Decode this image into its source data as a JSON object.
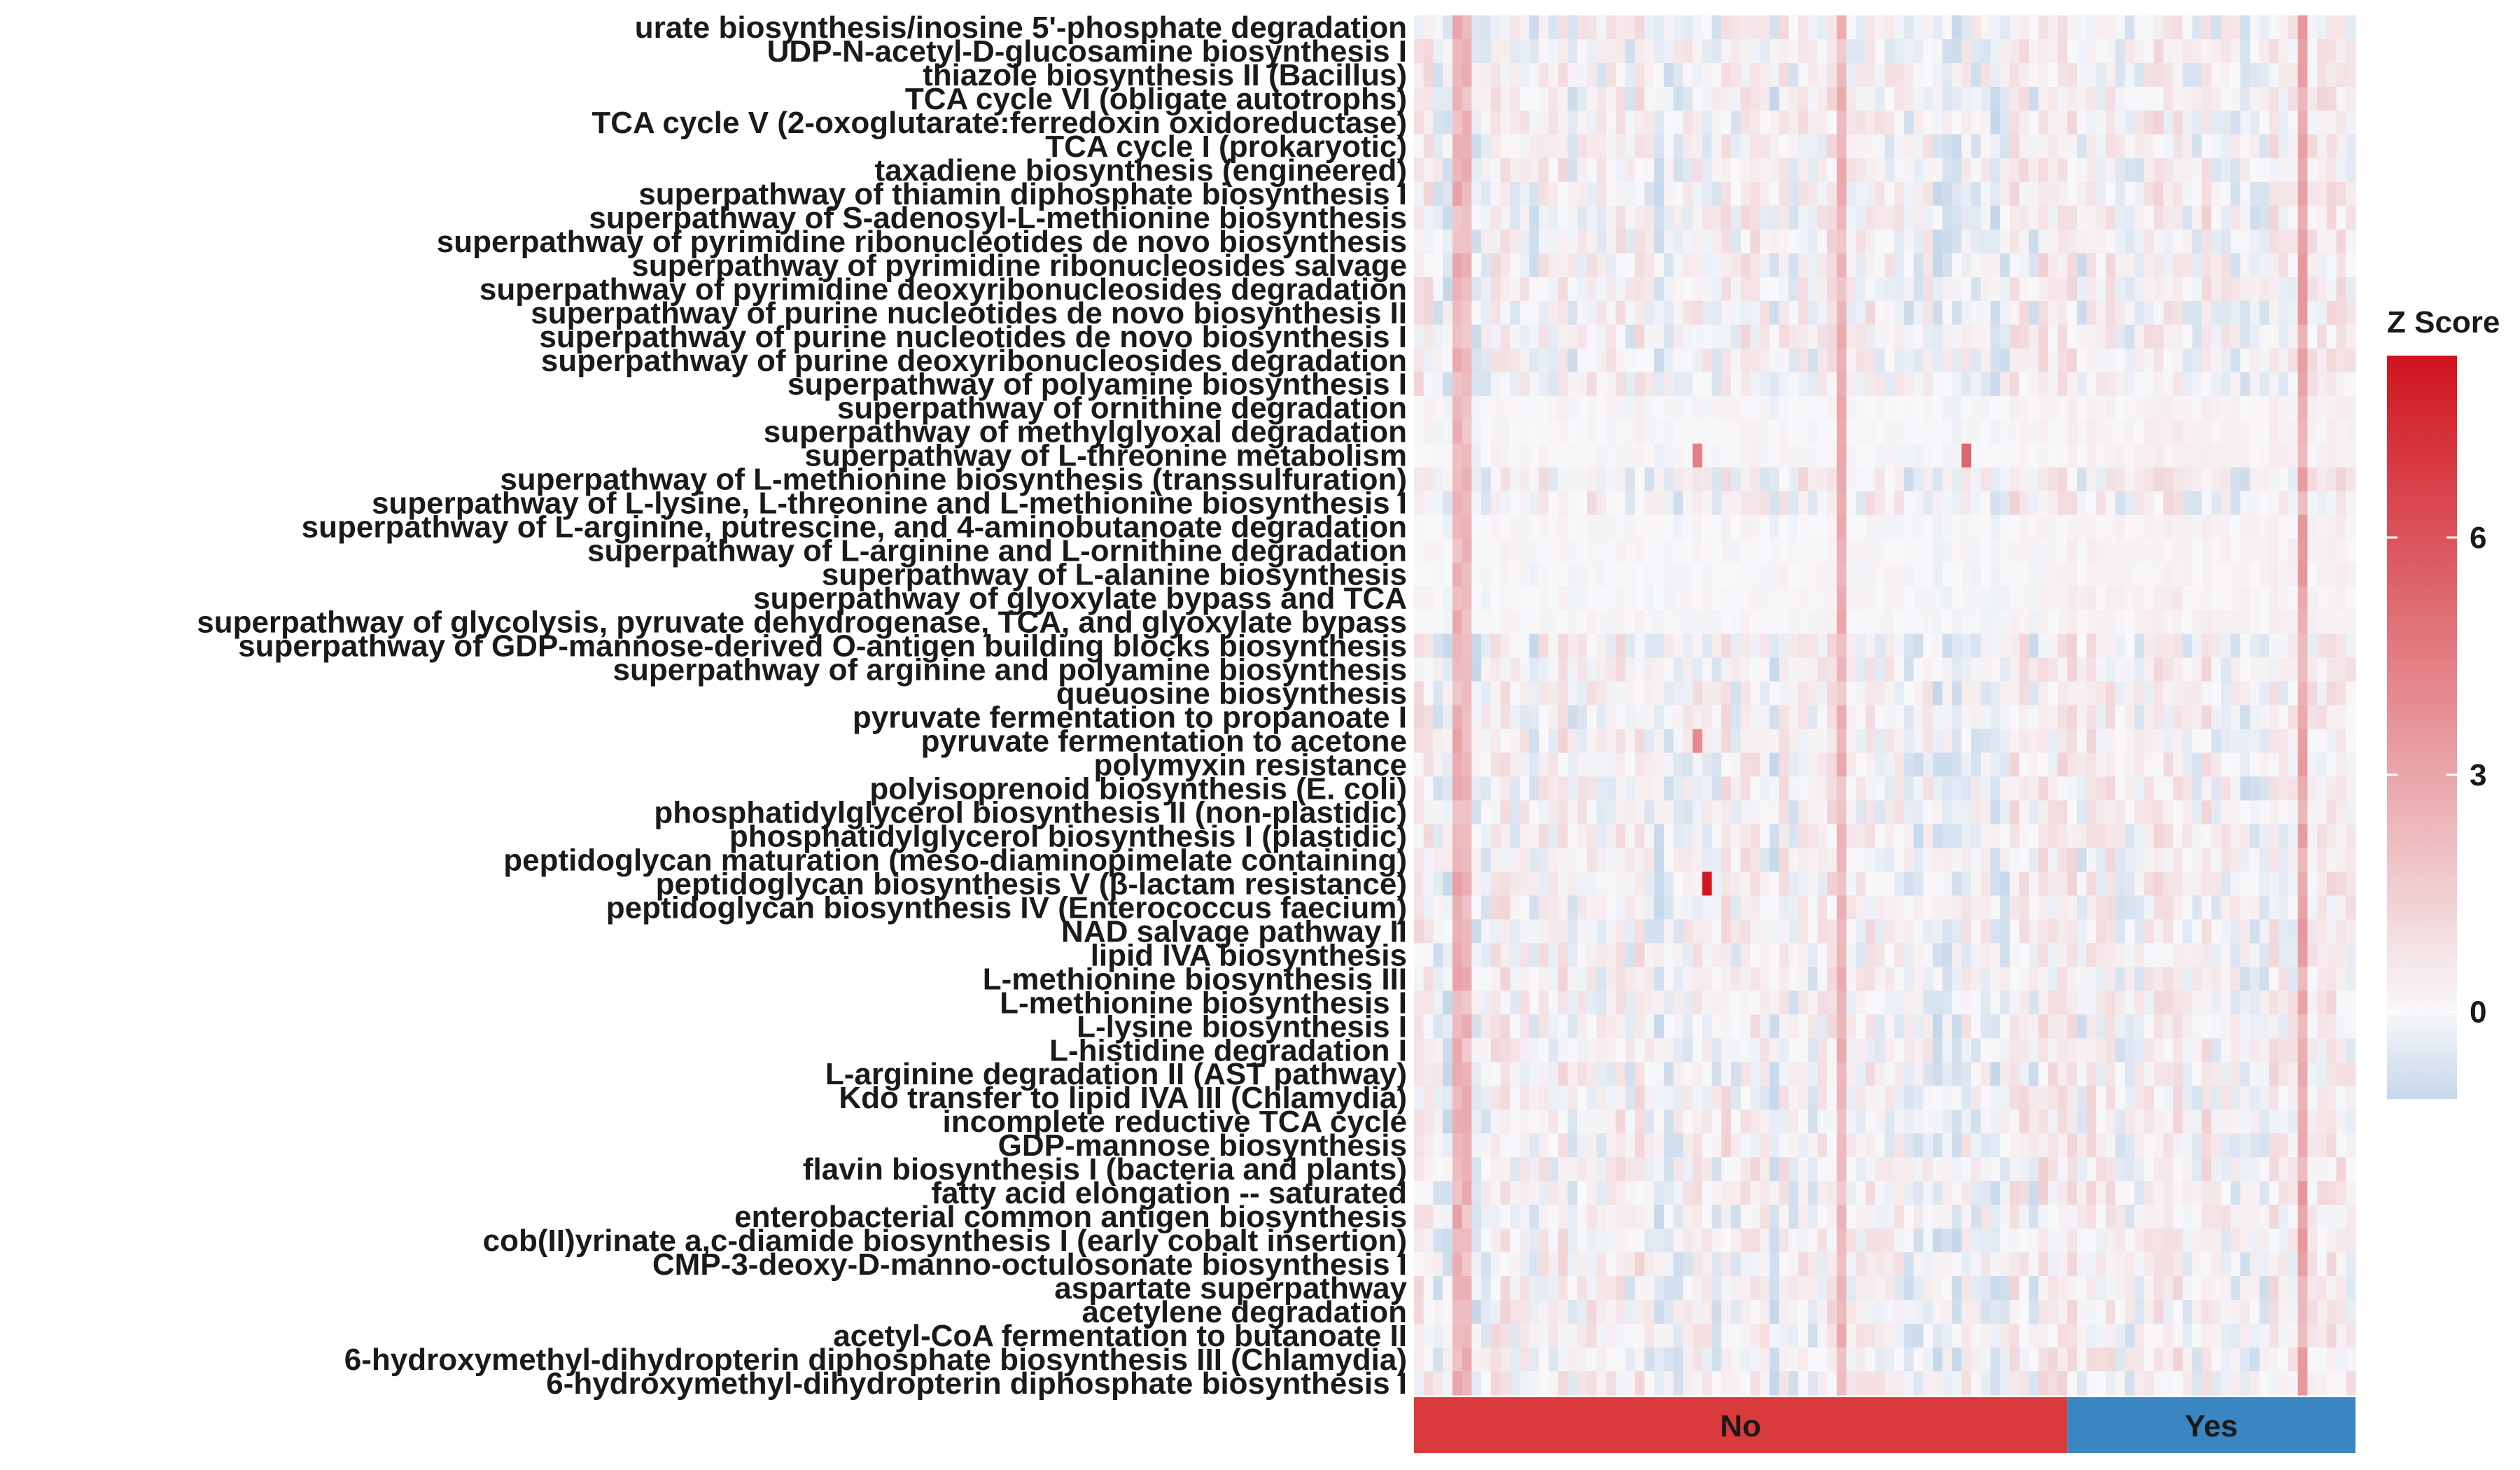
{
  "chart_data": {
    "type": "heatmap",
    "title": "",
    "legend": {
      "title": "Z Score",
      "ticks": [
        0,
        3,
        6
      ],
      "range": [
        -1.1,
        8.3
      ],
      "colors": {
        "low": "#c6d7ea",
        "mid": "#f8f8fa",
        "high": "#d0141e"
      }
    },
    "rows": [
      "urate biosynthesis/inosine 5'-phosphate degradation",
      "UDP-N-acetyl-D-glucosamine biosynthesis I",
      "thiazole biosynthesis II (Bacillus)",
      "TCA cycle VI (obligate autotrophs)",
      "TCA cycle V (2-oxoglutarate:ferredoxin oxidoreductase)",
      "TCA cycle I (prokaryotic)",
      "taxadiene biosynthesis (engineered)",
      "superpathway of thiamin diphosphate biosynthesis I",
      "superpathway of S-adenosyl-L-methionine biosynthesis",
      "superpathway of pyrimidine ribonucleotides de novo biosynthesis",
      "superpathway of pyrimidine ribonucleosides salvage",
      "superpathway of pyrimidine deoxyribonucleosides degradation",
      "superpathway of purine nucleotides de novo biosynthesis II",
      "superpathway of purine nucleotides de novo biosynthesis I",
      "superpathway of purine deoxyribonucleosides degradation",
      "superpathway of polyamine biosynthesis I",
      "superpathway of ornithine degradation",
      "superpathway of methylglyoxal degradation",
      "superpathway of L-threonine metabolism",
      "superpathway of L-methionine biosynthesis (transsulfuration)",
      "superpathway of L-lysine, L-threonine and L-methionine biosynthesis I",
      "superpathway of L-arginine, putrescine, and 4-aminobutanoate degradation",
      "superpathway of L-arginine and L-ornithine degradation",
      "superpathway of L-alanine biosynthesis",
      "superpathway of glyoxylate bypass and TCA",
      "superpathway of glycolysis, pyruvate dehydrogenase, TCA, and glyoxylate bypass",
      "superpathway of GDP-mannose-derived O-antigen building blocks biosynthesis",
      "superpathway of arginine and polyamine biosynthesis",
      "queuosine biosynthesis",
      "pyruvate fermentation to propanoate I",
      "pyruvate fermentation to acetone",
      "polymyxin resistance",
      "polyisoprenoid biosynthesis (E. coli)",
      "phosphatidylglycerol biosynthesis II (non-plastidic)",
      "phosphatidylglycerol biosynthesis I (plastidic)",
      "peptidoglycan maturation (meso-diaminopimelate containing)",
      "peptidoglycan biosynthesis V (&beta;-lactam resistance)",
      "peptidoglycan biosynthesis IV (Enterococcus faecium)",
      "NAD salvage pathway II",
      "lipid IVA biosynthesis",
      "L-methionine biosynthesis III",
      "L-methionine biosynthesis I",
      "L-lysine biosynthesis I",
      "L-histidine degradation I",
      "L-arginine degradation II (AST pathway)",
      "Kdo transfer to lipid IVA III (Chlamydia)",
      "incomplete reductive TCA cycle",
      "GDP-mannose biosynthesis",
      "flavin biosynthesis I (bacteria and plants)",
      "fatty acid elongation -- saturated",
      "enterobacterial common antigen biosynthesis",
      "cob(II)yrinate a,c-diamide biosynthesis I (early cobalt insertion)",
      "CMP-3-deoxy-D-manno-octulosonate biosynthesis I",
      "aspartate superpathway",
      "acetylene degradation",
      "acetyl-CoA fermentation to butanoate II",
      "6-hydroxymethyl-dihydropterin diphosphate biosynthesis III (Chlamydia)",
      "6-hydroxymethyl-dihydropterin diphosphate biosynthesis I"
    ],
    "groups": [
      {
        "label": "No",
        "count": 68,
        "color": "#d93a3c"
      },
      {
        "label": "Yes",
        "count": 30,
        "color": "#3a86c2"
      }
    ],
    "z_values": {
      "pattern": "approximate background z-scores in [-1, 1.5]; highlighted cells listed below",
      "highlights": [
        {
          "row": "peptidoglycan biosynthesis V (&beta;-lactam resistance)",
          "column": 30,
          "z": 8.2
        },
        {
          "row": "superpathway of L-threonine metabolism",
          "column": 57,
          "z": 5.3
        },
        {
          "row": "superpathway of L-threonine metabolism",
          "column": 29,
          "z": 4.4
        },
        {
          "row": "pyruvate fermentation to acetone",
          "column": 29,
          "z": 4.0
        }
      ],
      "hot_columns": [
        {
          "column": 4,
          "z": 3.2
        },
        {
          "column": 5,
          "z": 2.9
        },
        {
          "column": 44,
          "z": 3.0
        },
        {
          "column": 92,
          "z": 3.4
        }
      ]
    }
  }
}
